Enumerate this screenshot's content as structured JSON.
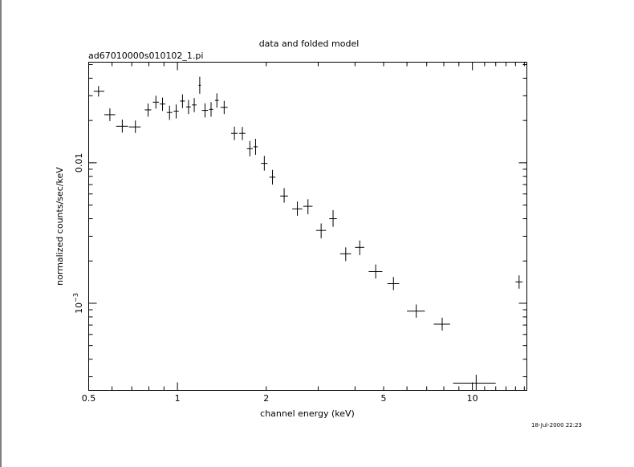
{
  "chart_data": {
    "type": "scatter",
    "title": "data and folded model",
    "subtitle": "ad67010000s010102_1.pi",
    "xlabel": "channel energy (keV)",
    "ylabel": "normalized counts/sec/keV",
    "timestamp": "18-Jul-2000 22:23",
    "x_scale": "log",
    "y_scale": "log",
    "xlim": [
      0.5,
      15.3
    ],
    "ylim": [
      0.00024,
      0.052
    ],
    "x_tick_labels": [
      {
        "value": 0.5,
        "label": "0.5"
      },
      {
        "value": 1,
        "label": "1"
      },
      {
        "value": 2,
        "label": "2"
      },
      {
        "value": 5,
        "label": "5"
      },
      {
        "value": 10,
        "label": "10"
      }
    ],
    "y_tick_labels": [
      {
        "value": 0.01,
        "label": "0.01",
        "exp": ""
      },
      {
        "value": 0.001,
        "label": "10",
        "exp": "−3"
      }
    ],
    "grid": false,
    "legend": "none",
    "series": [
      {
        "points": [
          {
            "x": 0.54,
            "xlo": 0.52,
            "xhi": 0.565,
            "y": 0.0323,
            "ylo": 0.0296,
            "yhi": 0.0352
          },
          {
            "x": 0.59,
            "xlo": 0.565,
            "xhi": 0.615,
            "y": 0.022,
            "ylo": 0.0198,
            "yhi": 0.0244
          },
          {
            "x": 0.65,
            "xlo": 0.62,
            "xhi": 0.68,
            "y": 0.0182,
            "ylo": 0.0164,
            "yhi": 0.0203
          },
          {
            "x": 0.72,
            "xlo": 0.685,
            "xhi": 0.75,
            "y": 0.018,
            "ylo": 0.0163,
            "yhi": 0.02
          },
          {
            "x": 0.795,
            "xlo": 0.775,
            "xhi": 0.815,
            "y": 0.0238,
            "ylo": 0.0213,
            "yhi": 0.0264
          },
          {
            "x": 0.845,
            "xlo": 0.825,
            "xhi": 0.865,
            "y": 0.027,
            "ylo": 0.0243,
            "yhi": 0.03
          },
          {
            "x": 0.89,
            "xlo": 0.87,
            "xhi": 0.91,
            "y": 0.0262,
            "ylo": 0.0234,
            "yhi": 0.0291
          },
          {
            "x": 0.94,
            "xlo": 0.92,
            "xhi": 0.96,
            "y": 0.0228,
            "ylo": 0.0202,
            "yhi": 0.0255
          },
          {
            "x": 0.99,
            "xlo": 0.97,
            "xhi": 1.01,
            "y": 0.0233,
            "ylo": 0.0207,
            "yhi": 0.026
          },
          {
            "x": 1.04,
            "xlo": 1.02,
            "xhi": 1.06,
            "y": 0.0275,
            "ylo": 0.0245,
            "yhi": 0.0307
          },
          {
            "x": 1.09,
            "xlo": 1.07,
            "xhi": 1.11,
            "y": 0.025,
            "ylo": 0.0222,
            "yhi": 0.028
          },
          {
            "x": 1.14,
            "xlo": 1.12,
            "xhi": 1.16,
            "y": 0.0258,
            "ylo": 0.0229,
            "yhi": 0.0289
          },
          {
            "x": 1.19,
            "xlo": 1.18,
            "xhi": 1.2,
            "y": 0.0356,
            "ylo": 0.031,
            "yhi": 0.041
          },
          {
            "x": 1.24,
            "xlo": 1.21,
            "xhi": 1.27,
            "y": 0.0236,
            "ylo": 0.021,
            "yhi": 0.0265
          },
          {
            "x": 1.3,
            "xlo": 1.28,
            "xhi": 1.32,
            "y": 0.024,
            "ylo": 0.0213,
            "yhi": 0.027
          },
          {
            "x": 1.36,
            "xlo": 1.34,
            "xhi": 1.38,
            "y": 0.0278,
            "ylo": 0.0247,
            "yhi": 0.0312
          },
          {
            "x": 1.44,
            "xlo": 1.4,
            "xhi": 1.48,
            "y": 0.0248,
            "ylo": 0.0222,
            "yhi": 0.0276
          },
          {
            "x": 1.56,
            "xlo": 1.52,
            "xhi": 1.6,
            "y": 0.0162,
            "ylo": 0.0145,
            "yhi": 0.0181
          },
          {
            "x": 1.66,
            "xlo": 1.62,
            "xhi": 1.7,
            "y": 0.0162,
            "ylo": 0.0145,
            "yhi": 0.018
          },
          {
            "x": 1.76,
            "xlo": 1.72,
            "xhi": 1.8,
            "y": 0.0126,
            "ylo": 0.0111,
            "yhi": 0.0143
          },
          {
            "x": 1.84,
            "xlo": 1.81,
            "xhi": 1.87,
            "y": 0.013,
            "ylo": 0.0114,
            "yhi": 0.0148
          },
          {
            "x": 1.97,
            "xlo": 1.92,
            "xhi": 2.02,
            "y": 0.0099,
            "ylo": 0.0088,
            "yhi": 0.0112
          },
          {
            "x": 2.1,
            "xlo": 2.05,
            "xhi": 2.15,
            "y": 0.0079,
            "ylo": 0.007,
            "yhi": 0.0089
          },
          {
            "x": 2.3,
            "xlo": 2.23,
            "xhi": 2.37,
            "y": 0.0058,
            "ylo": 0.0052,
            "yhi": 0.0066
          },
          {
            "x": 2.55,
            "xlo": 2.45,
            "xhi": 2.65,
            "y": 0.0047,
            "ylo": 0.0042,
            "yhi": 0.0053
          },
          {
            "x": 2.77,
            "xlo": 2.67,
            "xhi": 2.87,
            "y": 0.0049,
            "ylo": 0.0043,
            "yhi": 0.0055
          },
          {
            "x": 3.07,
            "xlo": 2.95,
            "xhi": 3.19,
            "y": 0.0033,
            "ylo": 0.0029,
            "yhi": 0.0037
          },
          {
            "x": 3.37,
            "xlo": 3.27,
            "xhi": 3.47,
            "y": 0.004,
            "ylo": 0.0035,
            "yhi": 0.0046
          },
          {
            "x": 3.72,
            "xlo": 3.56,
            "xhi": 3.88,
            "y": 0.00225,
            "ylo": 0.002,
            "yhi": 0.0025
          },
          {
            "x": 4.15,
            "xlo": 4.0,
            "xhi": 4.3,
            "y": 0.0025,
            "ylo": 0.0022,
            "yhi": 0.0028
          },
          {
            "x": 4.7,
            "xlo": 4.45,
            "xhi": 4.95,
            "y": 0.00168,
            "ylo": 0.0015,
            "yhi": 0.00189
          },
          {
            "x": 5.4,
            "xlo": 5.15,
            "xhi": 5.65,
            "y": 0.00138,
            "ylo": 0.00124,
            "yhi": 0.00154
          },
          {
            "x": 6.45,
            "xlo": 6.0,
            "xhi": 6.9,
            "y": 0.00088,
            "ylo": 0.00079,
            "yhi": 0.00098
          },
          {
            "x": 7.9,
            "xlo": 7.4,
            "xhi": 8.4,
            "y": 0.00071,
            "ylo": 0.00064,
            "yhi": 0.00079
          },
          {
            "x": 10.3,
            "xlo": 8.6,
            "xhi": 12.0,
            "y": 0.00027,
            "ylo": 0.00024,
            "yhi": 0.00031
          },
          {
            "x": 14.4,
            "xlo": 14.0,
            "xhi": 14.8,
            "y": 0.00142,
            "ylo": 0.00127,
            "yhi": 0.00158
          }
        ]
      }
    ]
  }
}
